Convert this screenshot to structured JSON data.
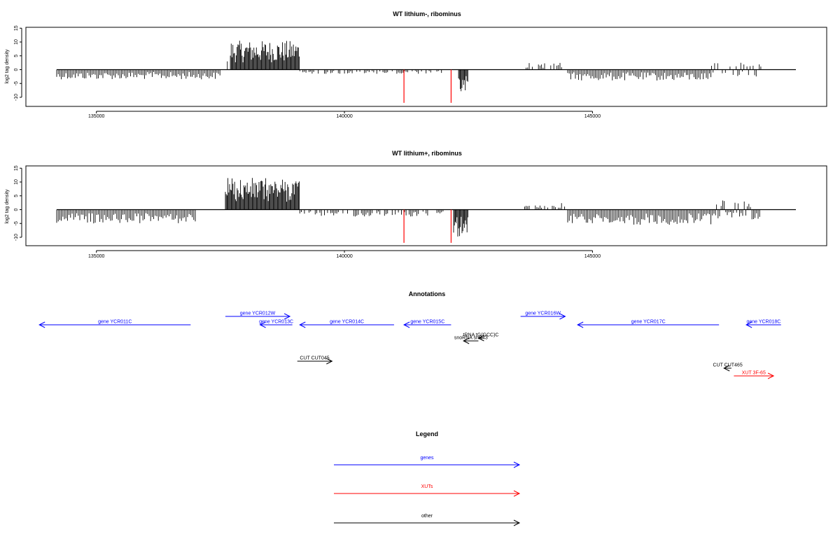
{
  "colors": {
    "gene": "#0000ff",
    "xut": "#ff0000",
    "other": "#000000",
    "marker": "#ff0000"
  },
  "chart_data": [
    {
      "type": "bar",
      "title": "WT lithium-, ribominus",
      "ylabel": "log2 tag density",
      "xlim": [
        134200,
        149100
      ],
      "ylim": [
        -12,
        15
      ],
      "xticks": [
        "135000",
        "140000",
        "145000"
      ],
      "yticks": [
        "-10",
        "-5",
        "0",
        "5",
        "10",
        "15"
      ],
      "segments": [
        {
          "from": 134200,
          "to": 137500,
          "side": "minus",
          "amp": 3.5
        },
        {
          "from": 137640,
          "to": 137660,
          "side": "plus",
          "amp": 3.5
        },
        {
          "from": 137700,
          "to": 139100,
          "side": "plus",
          "amp": 10.5
        },
        {
          "from": 139100,
          "to": 142000,
          "side": "minus",
          "amp": 1.5
        },
        {
          "from": 142300,
          "to": 142500,
          "side": "minus",
          "amp": 9
        },
        {
          "from": 143600,
          "to": 144500,
          "side": "plus",
          "amp": 2.5
        },
        {
          "from": 144500,
          "to": 147400,
          "side": "minus",
          "amp": 4
        },
        {
          "from": 147400,
          "to": 148400,
          "side": "mixed",
          "amp": 2.5
        }
      ],
      "markers": [
        141200,
        142150
      ]
    },
    {
      "type": "bar",
      "title": "WT lithium+, ribominus",
      "ylabel": "log2 tag density",
      "xlim": [
        134200,
        149100
      ],
      "ylim": [
        -12,
        15
      ],
      "xticks": [
        "135000",
        "140000",
        "145000"
      ],
      "yticks": [
        "-10",
        "-5",
        "0",
        "5",
        "10",
        "15"
      ],
      "segments": [
        {
          "from": 134200,
          "to": 137000,
          "side": "minus",
          "amp": 5
        },
        {
          "from": 137600,
          "to": 139100,
          "side": "plus",
          "amp": 11.5
        },
        {
          "from": 139100,
          "to": 142000,
          "side": "minus",
          "amp": 2.5
        },
        {
          "from": 142200,
          "to": 142500,
          "side": "minus",
          "amp": 10
        },
        {
          "from": 143600,
          "to": 144500,
          "side": "plus",
          "amp": 2.5
        },
        {
          "from": 144500,
          "to": 147500,
          "side": "minus",
          "amp": 5.5
        },
        {
          "from": 147500,
          "to": 148400,
          "side": "mixed",
          "amp": 3.5
        }
      ],
      "markers": [
        141200,
        142150
      ]
    }
  ],
  "annotations": {
    "title": "Annotations",
    "features": [
      {
        "label": "gene YCR011C",
        "type": "gene",
        "start": 133850,
        "end": 136900,
        "strand": "-",
        "row": 1
      },
      {
        "label": "gene YCR012W",
        "type": "gene",
        "start": 137600,
        "end": 138900,
        "strand": "+",
        "row": 0
      },
      {
        "label": "gene YCR013C",
        "type": "gene",
        "start": 138300,
        "end": 138950,
        "strand": "-",
        "row": 1
      },
      {
        "label": "gene YCR014C",
        "type": "gene",
        "start": 139100,
        "end": 141000,
        "strand": "-",
        "row": 1
      },
      {
        "label": "gene YCR015C",
        "type": "gene",
        "start": 141200,
        "end": 142150,
        "strand": "-",
        "row": 1
      },
      {
        "label": "gene YCR016W",
        "type": "gene",
        "start": 143550,
        "end": 144450,
        "strand": "+",
        "row": 0
      },
      {
        "label": "gene YCR017C",
        "type": "gene",
        "start": 144700,
        "end": 147550,
        "strand": "-",
        "row": 1
      },
      {
        "label": "gene YCR018C",
        "type": "gene",
        "start": 148100,
        "end": 148800,
        "strand": "-",
        "row": 1
      },
      {
        "label": "snoRNA snR43",
        "type": "other",
        "start": 142400,
        "end": 142700,
        "strand": "-",
        "row": 3
      },
      {
        "label": "tRNA tG(GCC)C",
        "type": "other",
        "start": 142700,
        "end": 142800,
        "strand": "-",
        "row": 2
      },
      {
        "label": "CUT CUT045",
        "type": "other",
        "start": 139050,
        "end": 139750,
        "strand": "+",
        "row": 5
      },
      {
        "label": "CUT CUT465",
        "type": "other",
        "start": 147650,
        "end": 147800,
        "strand": "-",
        "row": 6
      },
      {
        "label": "XUT 3F-65",
        "type": "xut",
        "start": 147850,
        "end": 148650,
        "strand": "+",
        "row": 7
      }
    ]
  },
  "legend": {
    "title": "Legend",
    "items": [
      {
        "label": "genes",
        "type": "gene"
      },
      {
        "label": "XUTs",
        "type": "xut"
      },
      {
        "label": "other",
        "type": "other"
      }
    ]
  }
}
